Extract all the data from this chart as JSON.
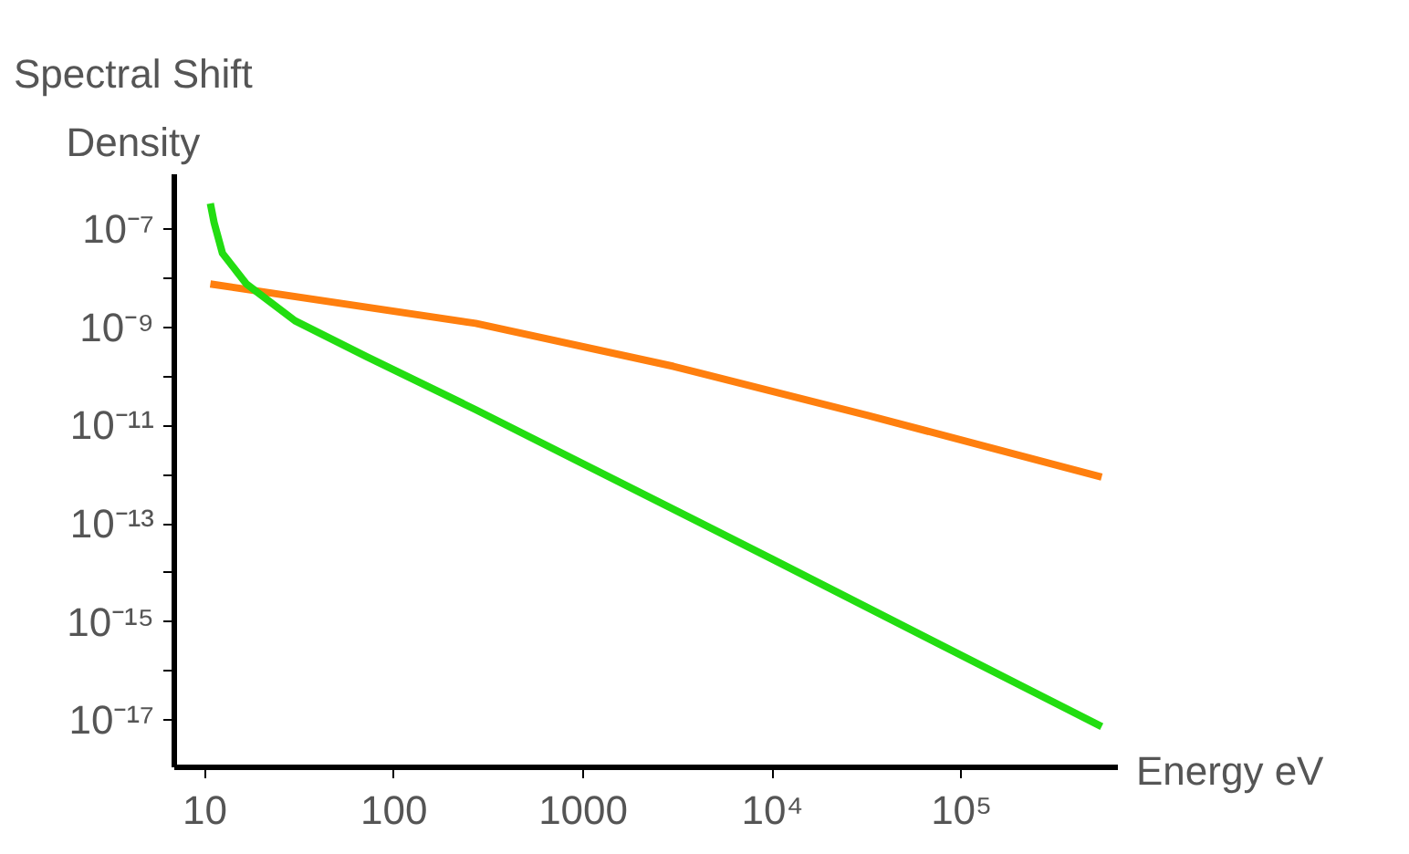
{
  "chart_data": {
    "type": "line",
    "ylabel": "Spectral Shift\nDensity",
    "xlabel": "Energy eV",
    "log": "xy",
    "grid": false,
    "xlim": [
      6.9,
      670000
    ],
    "ylim": [
      1.1e-18,
      1.3e-06
    ],
    "xticks": [
      10,
      100,
      1000,
      {
        "value": 10000,
        "label": "10⁴"
      },
      {
        "value": 100000,
        "label": "10⁵"
      }
    ],
    "yticks": [
      {
        "value": 1e-07,
        "label": "10⁻⁷"
      },
      {
        "value": 1e-08,
        "label": null
      },
      {
        "value": 1e-09,
        "label": "10⁻⁹"
      },
      {
        "value": 1e-10,
        "label": null
      },
      {
        "value": 1e-11,
        "label": "10⁻¹¹"
      },
      {
        "value": 1e-12,
        "label": null
      },
      {
        "value": 1e-13,
        "label": "10⁻¹³"
      },
      {
        "value": 1e-14,
        "label": null
      },
      {
        "value": 1e-15,
        "label": "10⁻¹⁵"
      },
      {
        "value": 1e-16,
        "label": null
      },
      {
        "value": 1e-17,
        "label": "10⁻¹⁷"
      }
    ],
    "series": [
      {
        "color": "#ff7f0e",
        "x": [
          10.7,
          270,
          3000,
          32000,
          550000
        ],
        "values": [
          7.6e-09,
          1.2e-09,
          1.6e-10,
          1.6e-11,
          8.9e-13
        ]
      },
      {
        "color": "#22dd11",
        "x": [
          10.7,
          11.2,
          12.4,
          16.6,
          30,
          72,
          270,
          10000,
          550000
        ],
        "values": [
          3.3e-07,
          1.35e-07,
          3.2e-08,
          7.6e-09,
          1.35e-09,
          2.5e-10,
          2.1e-11,
          1.9e-14,
          7.4e-18
        ]
      }
    ]
  }
}
